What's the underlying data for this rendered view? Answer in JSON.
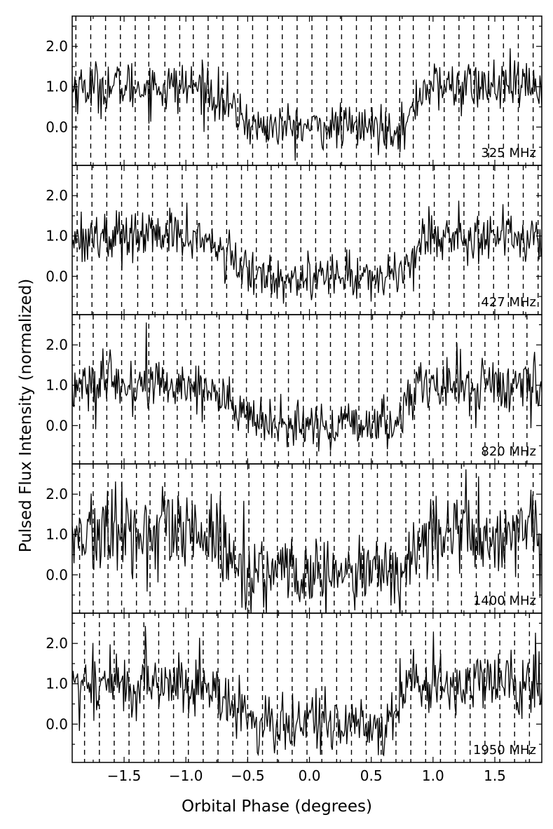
{
  "chart_data": {
    "type": "line",
    "xlabel": "Orbital Phase (degrees)",
    "ylabel": "Pulsed Flux Intensity (normalized)",
    "xlim": [
      -1.92,
      1.88
    ],
    "ylim": [
      -0.95,
      2.75
    ],
    "x_ticks": [
      -1.5,
      -1.0,
      -0.5,
      0.0,
      0.5,
      1.0,
      1.5
    ],
    "x_tick_labels": [
      "−1.5",
      "−1.0",
      "−0.5",
      "0.0",
      "0.5",
      "1.0",
      "1.5"
    ],
    "y_ticks": [
      0.0,
      1.0,
      2.0
    ],
    "y_tick_labels": [
      "0.0",
      "1.0",
      "2.0"
    ],
    "grid": false,
    "eclipse_profile": {
      "x": [
        -1.92,
        -0.95,
        -0.8,
        -0.6,
        -0.4,
        -0.2,
        0.0,
        0.2,
        0.4,
        0.6,
        0.8,
        1.0,
        1.88
      ],
      "y": [
        1.0,
        1.0,
        0.8,
        0.5,
        0.2,
        0.0,
        0.0,
        0.0,
        0.0,
        0.0,
        0.2,
        1.0,
        1.0
      ]
    },
    "panels": [
      {
        "label": "325 MHz",
        "noise_sigma": 0.32,
        "ingress": [
          -0.85,
          -0.45
        ],
        "egress": [
          0.78,
          0.92
        ],
        "dashes": [
          -1.89,
          -1.77,
          -1.65,
          -1.53,
          -1.41,
          -1.3,
          -1.17,
          -1.05,
          -0.94,
          -0.82,
          -0.7,
          -0.58,
          -0.46,
          -0.34,
          -0.22,
          -0.1,
          0.02,
          0.14,
          0.26,
          0.38,
          0.5,
          0.62,
          0.73,
          0.84,
          0.97,
          1.09,
          1.21,
          1.33,
          1.45,
          1.57,
          1.69,
          1.81
        ]
      },
      {
        "label": "427 MHz",
        "noise_sigma": 0.32,
        "ingress": [
          -0.9,
          -0.45
        ],
        "egress": [
          0.72,
          0.92
        ],
        "dashes": [
          -1.88,
          -1.76,
          -1.64,
          -1.52,
          -1.39,
          -1.27,
          -1.15,
          -1.03,
          -0.91,
          -0.79,
          -0.67,
          -0.55,
          -0.43,
          -0.31,
          -0.19,
          -0.07,
          0.05,
          0.17,
          0.29,
          0.41,
          0.53,
          0.65,
          0.77,
          0.89,
          1.01,
          1.13,
          1.25,
          1.37,
          1.49,
          1.61,
          1.73,
          1.85
        ]
      },
      {
        "label": "820 MHz",
        "noise_sigma": 0.35,
        "ingress": [
          -0.85,
          -0.4
        ],
        "egress": [
          0.7,
          0.85
        ],
        "dashes": [
          -1.86,
          -1.75,
          -1.64,
          -1.52,
          -1.41,
          -1.3,
          -1.18,
          -1.07,
          -0.96,
          -0.85,
          -0.73,
          -0.62,
          -0.51,
          -0.39,
          -0.28,
          -0.17,
          -0.05,
          0.06,
          0.17,
          0.29,
          0.4,
          0.51,
          0.63,
          0.74,
          0.85,
          0.97,
          1.08,
          1.19,
          1.31,
          1.42,
          1.53,
          1.65,
          1.76
        ]
      },
      {
        "label": "1400 MHz",
        "noise_sigma": 0.55,
        "ingress": [
          -0.9,
          -0.4
        ],
        "egress": [
          0.7,
          0.95
        ],
        "dashes": [
          -1.86,
          -1.75,
          -1.63,
          -1.52,
          -1.4,
          -1.29,
          -1.17,
          -1.06,
          -0.95,
          -0.83,
          -0.72,
          -0.6,
          -0.49,
          -0.37,
          -0.26,
          -0.14,
          -0.03,
          0.09,
          0.2,
          0.32,
          0.43,
          0.55,
          0.66,
          0.78,
          0.89,
          1.0,
          1.12,
          1.23,
          1.35,
          1.46,
          1.58,
          1.69,
          1.81
        ]
      },
      {
        "label": "1950 MHz",
        "noise_sigma": 0.42,
        "ingress": [
          -0.9,
          -0.4
        ],
        "egress": [
          0.65,
          0.8
        ],
        "dashes": [
          -1.82,
          -1.7,
          -1.58,
          -1.46,
          -1.34,
          -1.22,
          -1.1,
          -0.98,
          -0.86,
          -0.74,
          -0.62,
          -0.5,
          -0.38,
          -0.26,
          -0.14,
          -0.02,
          0.1,
          0.22,
          0.34,
          0.46,
          0.58,
          0.7,
          0.82,
          0.94,
          1.06,
          1.18,
          1.3,
          1.42,
          1.54,
          1.66,
          1.78
        ]
      }
    ]
  }
}
